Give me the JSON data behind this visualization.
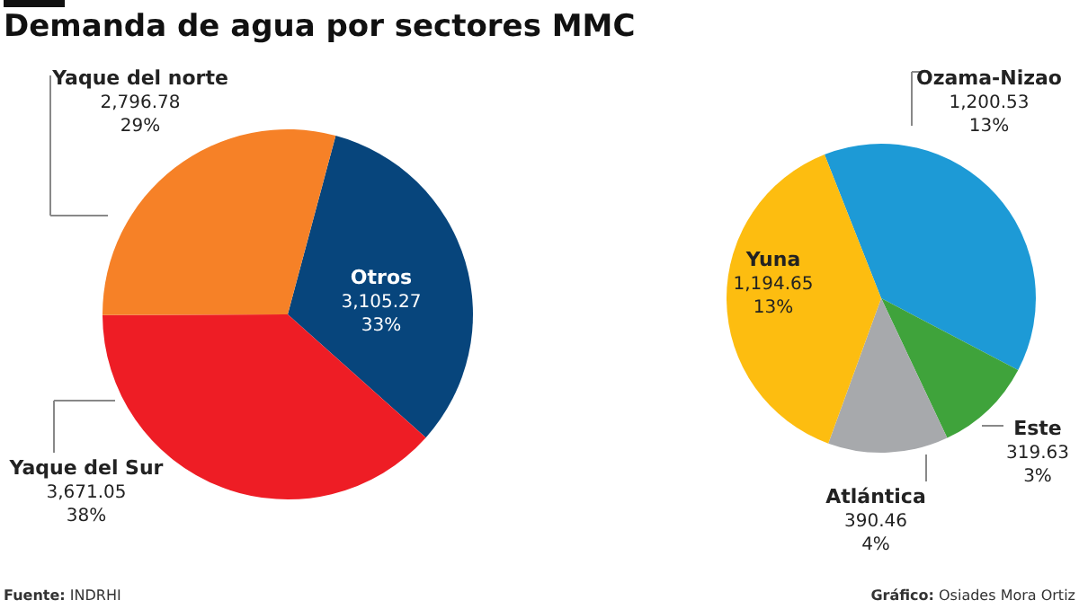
{
  "chart_data": [
    {
      "type": "pie",
      "title": "Demanda de agua por sectores MMC",
      "categories": [
        "Otros",
        "Yaque del Sur",
        "Yaque del norte"
      ],
      "values": [
        3105.27,
        3671.05,
        2796.78
      ],
      "colors": [
        "#07457c",
        "#ee1d25",
        "#f68127"
      ],
      "value_labels": [
        "3,105.27\n33%",
        "3,671.05\n38%",
        "2,796.78\n29%"
      ],
      "annotations": [
        "Fuente: INDRHI"
      ]
    },
    {
      "type": "pie",
      "categories": [
        "Ozama-Nizao",
        "Este",
        "Atlántica",
        "Yuna"
      ],
      "values": [
        1200.53,
        319.63,
        390.46,
        1194.65
      ],
      "colors": [
        "#1d9ad6",
        "#3fa33b",
        "#a7a9ac",
        "#fdbd10"
      ],
      "value_labels": [
        "1,200.53\n13%",
        "319.63\n3%",
        "390.46\n4%",
        "1,194.65\n13%"
      ],
      "annotations": [
        "Gráfico: Osiades Mora Ortiz"
      ]
    }
  ]
}
